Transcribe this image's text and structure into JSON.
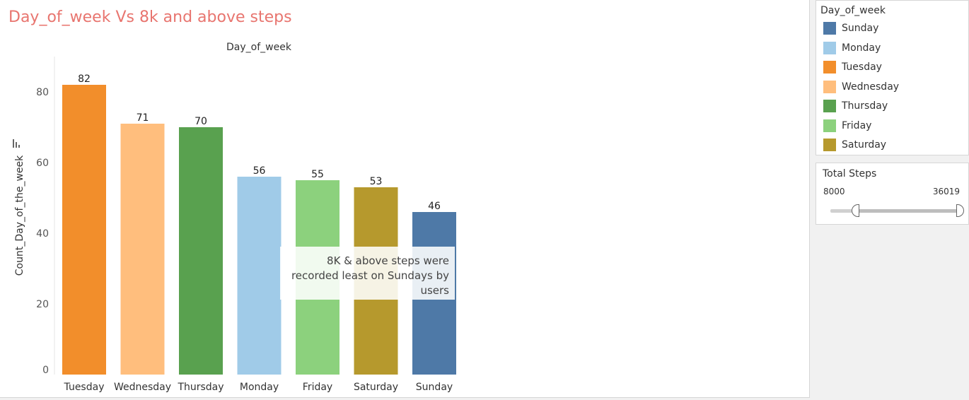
{
  "sheet": {
    "title": "Day_of_week Vs 8k and above steps"
  },
  "chart_data": {
    "type": "bar",
    "header": "Day_of_week",
    "categories": [
      "Tuesday",
      "Wednesday",
      "Thursday",
      "Monday",
      "Friday",
      "Saturday",
      "Sunday"
    ],
    "values": [
      82,
      71,
      70,
      56,
      55,
      53,
      46
    ],
    "colors": [
      "#f28e2b",
      "#ffbe7d",
      "#59a14f",
      "#a0cbe8",
      "#8cd17d",
      "#b6992d",
      "#4e79a7"
    ],
    "ylabel": "Count_Day_of_the_week",
    "xlabel": "",
    "ylim": [
      0,
      90
    ],
    "yticks": [
      0,
      20,
      40,
      60,
      80
    ],
    "data_labels": true,
    "grid": false,
    "annotation": "8K & above steps were recorded least on Sundays by users"
  },
  "legend": {
    "title": "Day_of_week",
    "items": [
      {
        "label": "Sunday",
        "color": "#4e79a7"
      },
      {
        "label": "Monday",
        "color": "#a0cbe8"
      },
      {
        "label": "Tuesday",
        "color": "#f28e2b"
      },
      {
        "label": "Wednesday",
        "color": "#ffbe7d"
      },
      {
        "label": "Thursday",
        "color": "#59a14f"
      },
      {
        "label": "Friday",
        "color": "#8cd17d"
      },
      {
        "label": "Saturday",
        "color": "#b6992d"
      }
    ]
  },
  "filter": {
    "title": "Total Steps",
    "min_label": "8000",
    "max_label": "36019"
  },
  "icons": {
    "axis_icon": "bar-chart-icon"
  }
}
